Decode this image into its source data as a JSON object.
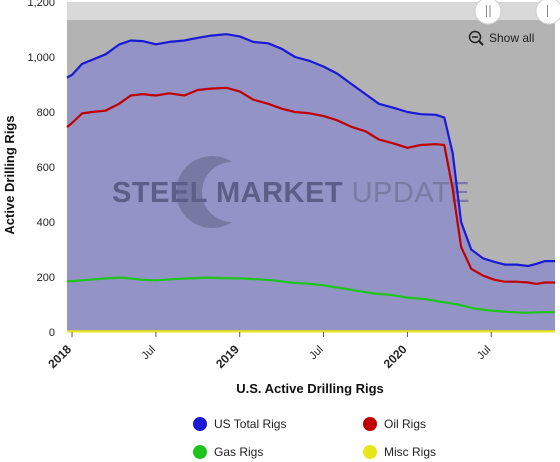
{
  "chart_data": {
    "type": "area",
    "title": "",
    "xlabel": "U.S. Active Drilling Rigs",
    "ylabel": "Active Drilling Rigs",
    "ylim": [
      0,
      1200
    ],
    "yticks": [
      "0",
      "200",
      "400",
      "600",
      "800",
      "1,000",
      "1,200"
    ],
    "xlim": [
      2017.97,
      2020.88
    ],
    "xticks": [
      {
        "label": "2018",
        "x": 2018.0,
        "bold": true
      },
      {
        "label": "Jul",
        "x": 2018.5,
        "bold": false
      },
      {
        "label": "2019",
        "x": 2019.0,
        "bold": true
      },
      {
        "label": "Jul",
        "x": 2019.5,
        "bold": false
      },
      {
        "label": "2020",
        "x": 2020.0,
        "bold": true
      },
      {
        "label": "Jul",
        "x": 2020.5,
        "bold": false
      }
    ],
    "grid": false,
    "legend_position": "bottom",
    "watermark": {
      "steel": "STEEL",
      "market": "MARKET",
      "update": "UPDATE"
    },
    "zoom_control": "Show all",
    "series": [
      {
        "name": "US Total Rigs",
        "color": "#1a1ad6",
        "x": [
          2017.97,
          2018.0,
          2018.06,
          2018.12,
          2018.2,
          2018.28,
          2018.35,
          2018.42,
          2018.5,
          2018.58,
          2018.67,
          2018.75,
          2018.83,
          2018.92,
          2019.0,
          2019.08,
          2019.17,
          2019.25,
          2019.33,
          2019.42,
          2019.5,
          2019.58,
          2019.67,
          2019.75,
          2019.83,
          2019.92,
          2020.0,
          2020.08,
          2020.17,
          2020.22,
          2020.27,
          2020.32,
          2020.38,
          2020.45,
          2020.52,
          2020.58,
          2020.65,
          2020.72,
          2020.77,
          2020.82,
          2020.88
        ],
        "values": [
          925,
          935,
          975,
          990,
          1010,
          1045,
          1060,
          1058,
          1046,
          1055,
          1060,
          1070,
          1078,
          1083,
          1075,
          1055,
          1050,
          1030,
          1000,
          985,
          965,
          940,
          900,
          865,
          830,
          815,
          800,
          792,
          790,
          780,
          650,
          400,
          300,
          268,
          255,
          245,
          245,
          240,
          248,
          258,
          258
        ]
      },
      {
        "name": "Oil Rigs",
        "color": "#c00000",
        "x": [
          2017.97,
          2018.0,
          2018.06,
          2018.12,
          2018.2,
          2018.28,
          2018.35,
          2018.42,
          2018.5,
          2018.58,
          2018.67,
          2018.75,
          2018.83,
          2018.92,
          2019.0,
          2019.08,
          2019.17,
          2019.25,
          2019.33,
          2019.42,
          2019.5,
          2019.58,
          2019.67,
          2019.75,
          2019.83,
          2019.92,
          2020.0,
          2020.08,
          2020.17,
          2020.22,
          2020.27,
          2020.32,
          2020.38,
          2020.45,
          2020.52,
          2020.58,
          2020.65,
          2020.72,
          2020.77,
          2020.82,
          2020.88
        ],
        "values": [
          745,
          760,
          795,
          800,
          805,
          830,
          860,
          865,
          860,
          868,
          860,
          880,
          885,
          888,
          875,
          845,
          830,
          812,
          800,
          795,
          785,
          770,
          745,
          730,
          700,
          685,
          670,
          680,
          683,
          680,
          520,
          310,
          230,
          205,
          190,
          183,
          183,
          180,
          175,
          180,
          180
        ]
      },
      {
        "name": "Gas Rigs",
        "color": "#1ec41e",
        "x": [
          2017.97,
          2018.0,
          2018.1,
          2018.2,
          2018.3,
          2018.42,
          2018.5,
          2018.6,
          2018.7,
          2018.8,
          2018.9,
          2019.0,
          2019.1,
          2019.2,
          2019.3,
          2019.42,
          2019.5,
          2019.6,
          2019.7,
          2019.8,
          2019.9,
          2020.0,
          2020.1,
          2020.2,
          2020.3,
          2020.4,
          2020.5,
          2020.6,
          2020.7,
          2020.8,
          2020.88
        ],
        "values": [
          185,
          185,
          190,
          195,
          198,
          190,
          188,
          192,
          195,
          198,
          196,
          195,
          192,
          188,
          180,
          175,
          170,
          160,
          150,
          140,
          135,
          125,
          120,
          110,
          100,
          85,
          78,
          73,
          70,
          72,
          72
        ]
      },
      {
        "name": "Misc Rigs",
        "color": "#e6e619",
        "x": [
          2017.97,
          2018.5,
          2019.0,
          2019.5,
          2020.0,
          2020.5,
          2020.88
        ],
        "values": [
          2,
          2,
          2,
          2,
          2,
          2,
          2
        ]
      }
    ]
  }
}
